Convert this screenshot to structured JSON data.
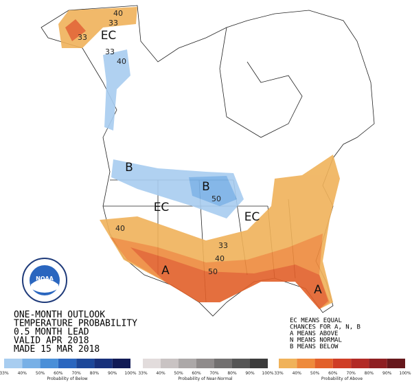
{
  "map": {
    "region_labels": [
      "EC",
      "B",
      "B",
      "EC",
      "EC",
      "A",
      "A"
    ],
    "contour_labels": [
      "40",
      "33",
      "33",
      "33",
      "40",
      "50",
      "40",
      "33",
      "40",
      "50"
    ]
  },
  "caption": {
    "lines": [
      "ONE-MONTH OUTLOOK",
      "TEMPERATURE PROBABILITY",
      "0.5 MONTH LEAD",
      "VALID APR 2018",
      "MADE 15 MAR 2018"
    ]
  },
  "key": {
    "lines": [
      "EC MEANS EQUAL",
      "CHANCES FOR A, N, B",
      "A MEANS ABOVE",
      "N MEANS NORMAL",
      "B MEANS BELOW"
    ]
  },
  "legend": [
    {
      "title": "Probability of Below",
      "ticks": [
        "33%",
        "40%",
        "50%",
        "60%",
        "70%",
        "80%",
        "90%",
        "100%"
      ],
      "colors": [
        "#a8cdf0",
        "#78b0e6",
        "#4a8fd8",
        "#2a66bf",
        "#1c4799",
        "#17307a",
        "#101a55"
      ]
    },
    {
      "title": "Probability of Near-Normal",
      "ticks": [
        "33%",
        "40%",
        "50%",
        "60%",
        "70%",
        "80%",
        "90%",
        "100%"
      ],
      "colors": [
        "#e2dcdc",
        "#c9c3c3",
        "#aca8a8",
        "#8f8b8b",
        "#727070",
        "#555555",
        "#3b3b3b"
      ]
    },
    {
      "title": "Probability of Above",
      "ticks": [
        "33%",
        "40%",
        "50%",
        "60%",
        "70%",
        "80%",
        "90%",
        "100%"
      ],
      "colors": [
        "#f0b25a",
        "#ee8a3c",
        "#e2602a",
        "#cf3d25",
        "#b22a25",
        "#8e1f22",
        "#66181c"
      ]
    }
  ]
}
